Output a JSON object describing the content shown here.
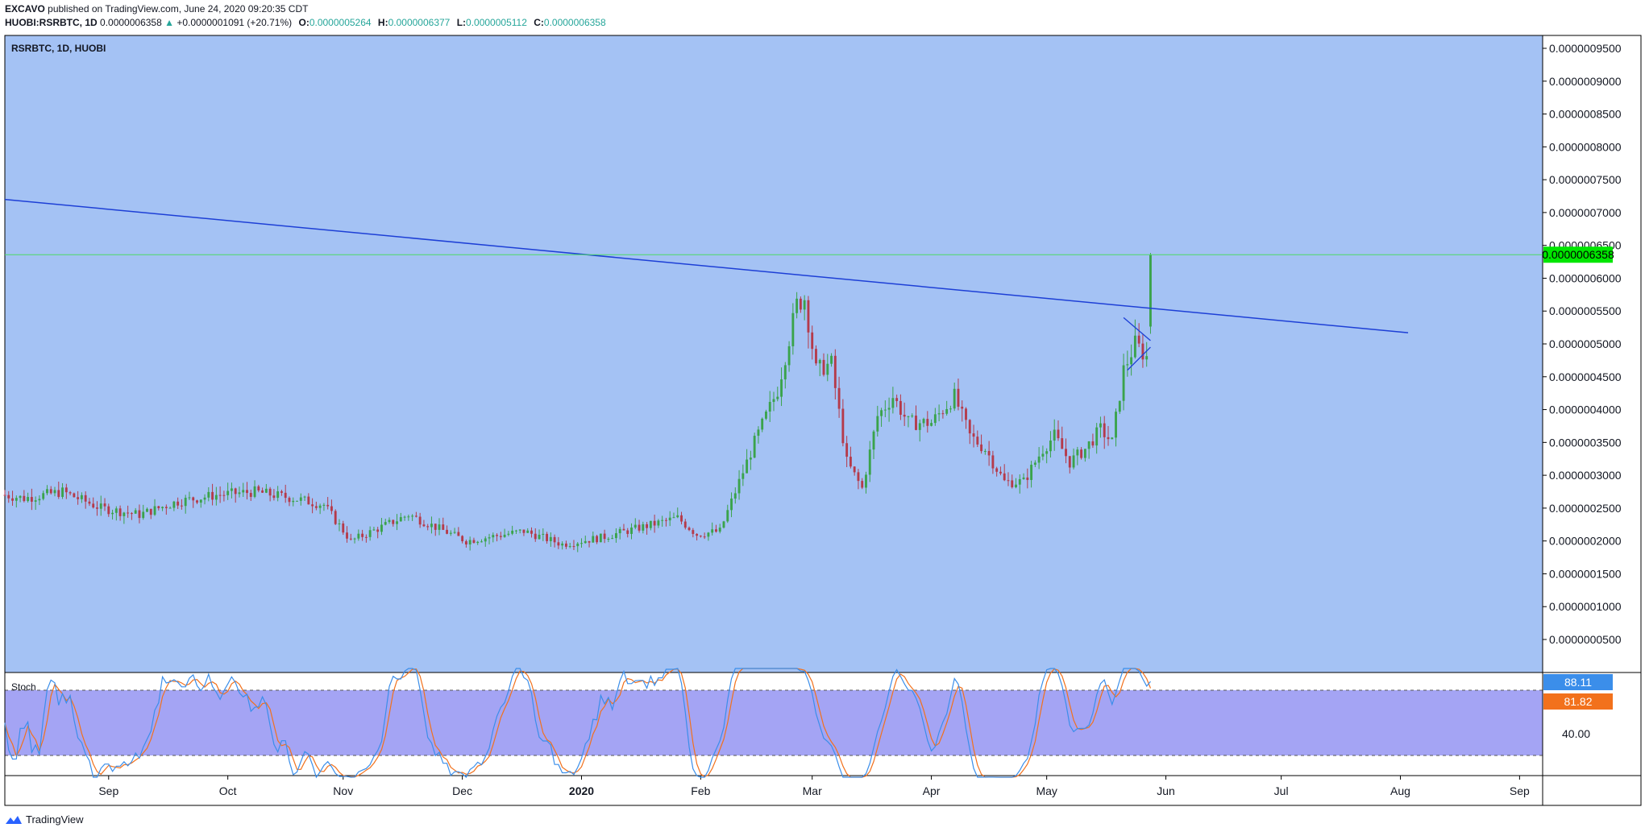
{
  "header": {
    "publisher": "EXCAVO",
    "published_text": "published on TradingView.com, June 24, 2020 09:20:35 CDT",
    "symbol": "HUOBI:RSRBTC, 1D",
    "last": "0.0000006358",
    "change_arrow": "▲",
    "change": "+0.0000001091 (+20.71%)",
    "o_label": "O:",
    "o_value": "0.0000005264",
    "h_label": "H:",
    "h_value": "0.0000006377",
    "l_label": "L:",
    "l_value": "0.0000005112",
    "c_label": "C:",
    "c_value": "0.0000006358"
  },
  "footer": {
    "brand": "TradingView",
    "logo_icon": "tradingview-logo-icon"
  },
  "colors": {
    "main_bg": "#a4c2f4",
    "stoch_bg": "#a4a4f4",
    "up": "#3aa34b",
    "down": "#b53a4a",
    "trendline": "#1d3fd6",
    "price_line": "#4cd964",
    "price_tag": "#00e600",
    "k_line": "#3b8eea",
    "d_line": "#f2711c"
  },
  "chart_data": {
    "type": "candlestick",
    "title": "RSRBTC, 1D, HUOBI",
    "y_axis_ticks": [
      "0.0000009500",
      "0.0000009000",
      "0.0000008500",
      "0.0000008000",
      "0.0000007500",
      "0.0000007000",
      "0.0000006500",
      "0.0000006000",
      "0.0000005500",
      "0.0000005000",
      "0.0000004500",
      "0.0000004000",
      "0.0000003500",
      "0.0000003000",
      "0.0000002500",
      "0.0000002000",
      "0.0000001500",
      "0.0000001000",
      "0.0000000500"
    ],
    "y_range": [
      0.0,
      9.7e-07
    ],
    "x_axis_labels": [
      "Sep",
      "Oct",
      "Nov",
      "Dec",
      "2020",
      "Feb",
      "Mar",
      "Apr",
      "May",
      "Jun",
      "Jul",
      "Aug",
      "Sep"
    ],
    "x_axis_label_days": [
      22,
      53,
      83,
      114,
      145,
      176,
      205,
      236,
      266,
      297,
      327,
      358,
      389
    ],
    "x_range_days": [
      -5,
      395
    ],
    "last_price_tag": "0.0000006358",
    "last_price": 6.358e-07,
    "trendline": {
      "from": {
        "day": -5,
        "price": 7.2e-07
      },
      "to": {
        "day": 360,
        "price": 5.17e-07
      }
    },
    "pennant": {
      "upper": [
        {
          "day": 286,
          "price": 5.4e-07
        },
        {
          "day": 293,
          "price": 5.05e-07
        }
      ],
      "lower": [
        {
          "day": 287,
          "price": 4.6e-07
        },
        {
          "day": 293,
          "price": 4.95e-07
        }
      ]
    },
    "price_keypoints_days": [
      -5,
      0,
      10,
      20,
      30,
      40,
      50,
      60,
      70,
      78,
      85,
      100,
      115,
      130,
      140,
      150,
      160,
      170,
      175,
      181,
      186,
      190,
      196,
      201,
      203,
      206,
      210,
      214,
      218,
      222,
      226,
      230,
      236,
      242,
      246,
      250,
      255,
      260,
      265,
      268,
      272,
      276,
      280,
      283,
      286,
      289,
      292,
      293
    ],
    "price_keypoints_closes": [
      2.7,
      2.65,
      2.75,
      2.5,
      2.4,
      2.6,
      2.7,
      2.75,
      2.65,
      2.55,
      2.0,
      2.4,
      2.0,
      2.15,
      1.95,
      2.05,
      2.2,
      2.35,
      2.1,
      2.15,
      2.9,
      3.5,
      4.3,
      5.6,
      5.7,
      4.6,
      4.7,
      3.2,
      2.8,
      3.9,
      4.2,
      3.8,
      3.8,
      4.2,
      3.6,
      3.4,
      2.9,
      2.9,
      3.4,
      3.6,
      3.2,
      3.4,
      3.7,
      3.5,
      4.6,
      5.0,
      4.8,
      6.358
    ],
    "price_keypoints_unit": "x 1e-7",
    "stochastic": {
      "label": "Stoch",
      "k_last": "88.11",
      "d_last": "81.82",
      "level_tag": "40.00",
      "upper_band": 80,
      "lower_band": 20,
      "range": [
        0,
        100
      ]
    }
  }
}
